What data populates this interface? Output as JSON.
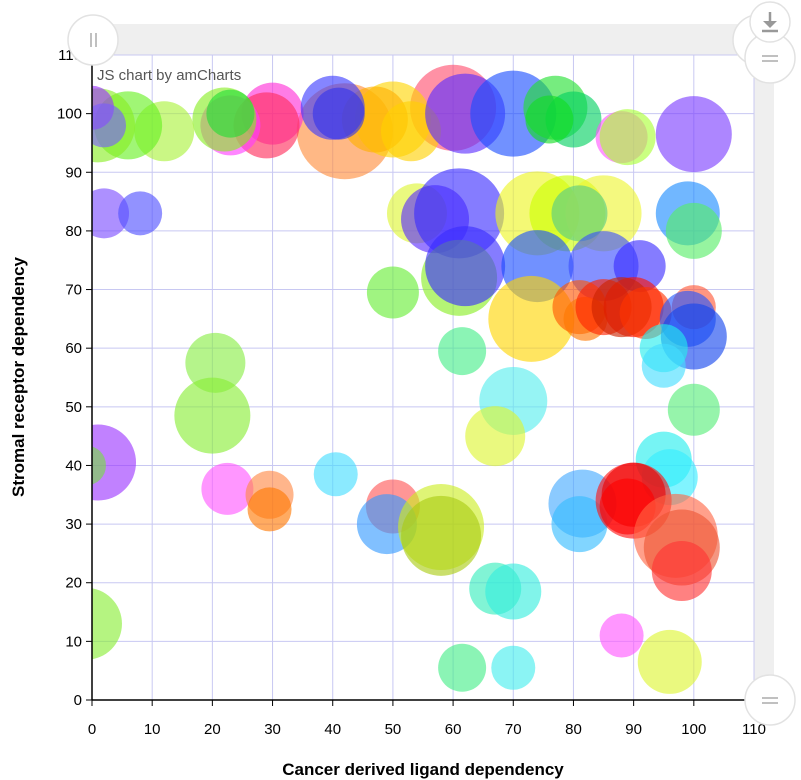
{
  "credit": "JS chart by amCharts",
  "chart_data": {
    "type": "scatter",
    "subtype": "bubble",
    "title": "",
    "xlabel": "Cancer derived ligand dependency",
    "ylabel": "Stromal receptor dependency",
    "xlim": [
      0,
      110
    ],
    "ylim": [
      0,
      110
    ],
    "x_ticks": [
      "0",
      "10",
      "20",
      "30",
      "40",
      "50",
      "60",
      "70",
      "80",
      "90",
      "100",
      "110"
    ],
    "y_ticks": [
      "0",
      "10",
      "20",
      "30",
      "40",
      "50",
      "60",
      "70",
      "80",
      "90",
      "100",
      "110"
    ],
    "grid": true,
    "legend": "none",
    "points": [
      {
        "x": 42,
        "y": 97,
        "r": 48,
        "color": "#ff8c3a"
      },
      {
        "x": 60,
        "y": 101,
        "r": 43,
        "color": "#ff4d6d"
      },
      {
        "x": 50,
        "y": 99,
        "r": 38,
        "color": "#ffd500"
      },
      {
        "x": 47,
        "y": 99,
        "r": 33,
        "color": "#ffb000"
      },
      {
        "x": 53,
        "y": 97,
        "r": 30,
        "color": "#ffd000"
      },
      {
        "x": 62,
        "y": 100,
        "r": 40,
        "color": "#5a2cff"
      },
      {
        "x": 70,
        "y": 100,
        "r": 43,
        "color": "#1a4dff"
      },
      {
        "x": 77,
        "y": 101,
        "r": 32,
        "color": "#22e030"
      },
      {
        "x": 80,
        "y": 99,
        "r": 28,
        "color": "#00d060"
      },
      {
        "x": 76,
        "y": 99,
        "r": 24,
        "color": "#11dd22"
      },
      {
        "x": 88,
        "y": 96,
        "r": 26,
        "color": "#ff55ff"
      },
      {
        "x": 89,
        "y": 96,
        "r": 28,
        "color": "#aaff33"
      },
      {
        "x": 100,
        "y": 96.5,
        "r": 38,
        "color": "#7a3cff"
      },
      {
        "x": 30,
        "y": 100,
        "r": 31,
        "color": "#ff2bd6"
      },
      {
        "x": 29,
        "y": 98,
        "r": 33,
        "color": "#ff2b5a"
      },
      {
        "x": 23,
        "y": 98,
        "r": 30,
        "color": "#ff3bff"
      },
      {
        "x": 22,
        "y": 99,
        "r": 32,
        "color": "#88ee22"
      },
      {
        "x": 23,
        "y": 100,
        "r": 24,
        "color": "#22dd33"
      },
      {
        "x": 12,
        "y": 97,
        "r": 30,
        "color": "#aaf23a"
      },
      {
        "x": 6,
        "y": 98,
        "r": 34,
        "color": "#66f020"
      },
      {
        "x": 1,
        "y": 98,
        "r": 37,
        "color": "#88ee22"
      },
      {
        "x": 0,
        "y": 101,
        "r": 22,
        "color": "#9b30ff"
      },
      {
        "x": 2,
        "y": 98,
        "r": 22,
        "color": "#7a5cff"
      },
      {
        "x": 40,
        "y": 101,
        "r": 32,
        "color": "#3a3aff"
      },
      {
        "x": 41,
        "y": 100,
        "r": 26,
        "color": "#3333ee"
      },
      {
        "x": 2,
        "y": 83,
        "r": 25,
        "color": "#7a4cff"
      },
      {
        "x": 8,
        "y": 83,
        "r": 22,
        "color": "#4f4fff"
      },
      {
        "x": 54,
        "y": 83,
        "r": 30,
        "color": "#ddf530"
      },
      {
        "x": 57,
        "y": 82,
        "r": 34,
        "color": "#5a2cff"
      },
      {
        "x": 61,
        "y": 83,
        "r": 45,
        "color": "#3a2cff"
      },
      {
        "x": 61,
        "y": 72,
        "r": 38,
        "color": "#88ee22"
      },
      {
        "x": 62,
        "y": 74,
        "r": 40,
        "color": "#3a2cff"
      },
      {
        "x": 74,
        "y": 83,
        "r": 42,
        "color": "#eef520"
      },
      {
        "x": 79,
        "y": 83,
        "r": 38,
        "color": "#ccff00"
      },
      {
        "x": 85,
        "y": 83,
        "r": 38,
        "color": "#eef530"
      },
      {
        "x": 81,
        "y": 83,
        "r": 28,
        "color": "#55cc88"
      },
      {
        "x": 74,
        "y": 74,
        "r": 36,
        "color": "#1a4dff"
      },
      {
        "x": 73,
        "y": 65,
        "r": 43,
        "color": "#ffd500"
      },
      {
        "x": 85,
        "y": 74,
        "r": 35,
        "color": "#3a4dff"
      },
      {
        "x": 91,
        "y": 74,
        "r": 26,
        "color": "#3a2cff"
      },
      {
        "x": 99,
        "y": 83,
        "r": 32,
        "color": "#1a8aff"
      },
      {
        "x": 100,
        "y": 80,
        "r": 28,
        "color": "#55ee66"
      },
      {
        "x": 50,
        "y": 69.5,
        "r": 26,
        "color": "#66ee33"
      },
      {
        "x": 81,
        "y": 67,
        "r": 27,
        "color": "#ff5500"
      },
      {
        "x": 82,
        "y": 65,
        "r": 22,
        "color": "#ff7700"
      },
      {
        "x": 85,
        "y": 67,
        "r": 28,
        "color": "#ff2200"
      },
      {
        "x": 90,
        "y": 67,
        "r": 30,
        "color": "#ff1100"
      },
      {
        "x": 88,
        "y": 67,
        "r": 30,
        "color": "#cc2200"
      },
      {
        "x": 92,
        "y": 66,
        "r": 26,
        "color": "#ff3300"
      },
      {
        "x": 100,
        "y": 67,
        "r": 22,
        "color": "#ff5533"
      },
      {
        "x": 99,
        "y": 65,
        "r": 28,
        "color": "#2255ff"
      },
      {
        "x": 100,
        "y": 62,
        "r": 33,
        "color": "#1144ee"
      },
      {
        "x": 95,
        "y": 60,
        "r": 24,
        "color": "#22eeee"
      },
      {
        "x": 95,
        "y": 57,
        "r": 22,
        "color": "#44ddff"
      },
      {
        "x": 61.5,
        "y": 59.5,
        "r": 24,
        "color": "#44ee88"
      },
      {
        "x": 20.5,
        "y": 57.5,
        "r": 30,
        "color": "#88ee44"
      },
      {
        "x": 20,
        "y": 48.5,
        "r": 38,
        "color": "#88ee33"
      },
      {
        "x": 70,
        "y": 51,
        "r": 34,
        "color": "#55eeee"
      },
      {
        "x": 67,
        "y": 45,
        "r": 30,
        "color": "#ddf530"
      },
      {
        "x": 100,
        "y": 49.5,
        "r": 26,
        "color": "#55ee77"
      },
      {
        "x": 95,
        "y": 41,
        "r": 28,
        "color": "#22eeee"
      },
      {
        "x": 96,
        "y": 38,
        "r": 28,
        "color": "#33eeff"
      },
      {
        "x": 1,
        "y": 40.5,
        "r": 38,
        "color": "#9b33ff"
      },
      {
        "x": -1,
        "y": 40,
        "r": 20,
        "color": "#77dd44"
      },
      {
        "x": 40.5,
        "y": 38.5,
        "r": 22,
        "color": "#44ddff"
      },
      {
        "x": 22.5,
        "y": 36,
        "r": 26,
        "color": "#ff55ff"
      },
      {
        "x": 29.5,
        "y": 35,
        "r": 24,
        "color": "#ff8844"
      },
      {
        "x": 29.5,
        "y": 32.5,
        "r": 22,
        "color": "#ff7700"
      },
      {
        "x": 50,
        "y": 33,
        "r": 27,
        "color": "#ff5555"
      },
      {
        "x": 49,
        "y": 30,
        "r": 30,
        "color": "#3399ff"
      },
      {
        "x": 58,
        "y": 29.5,
        "r": 43,
        "color": "#ccee22"
      },
      {
        "x": 58,
        "y": 28,
        "r": 40,
        "color": "#aacc11"
      },
      {
        "x": 81.5,
        "y": 33.5,
        "r": 34,
        "color": "#44aaff"
      },
      {
        "x": 81,
        "y": 30,
        "r": 28,
        "color": "#33bbff"
      },
      {
        "x": 90,
        "y": 34,
        "r": 38,
        "color": "#ff1111"
      },
      {
        "x": 90,
        "y": 35,
        "r": 32,
        "color": "#ee0000"
      },
      {
        "x": 89,
        "y": 33,
        "r": 28,
        "color": "#ff0000"
      },
      {
        "x": 97,
        "y": 28,
        "r": 42,
        "color": "#ff6644"
      },
      {
        "x": 98,
        "y": 26,
        "r": 38,
        "color": "#ee5533"
      },
      {
        "x": 98,
        "y": 22,
        "r": 30,
        "color": "#ff3333"
      },
      {
        "x": 67,
        "y": 19,
        "r": 26,
        "color": "#33eebb"
      },
      {
        "x": 70,
        "y": 18.5,
        "r": 28,
        "color": "#33eedd"
      },
      {
        "x": -1,
        "y": 13,
        "r": 36,
        "color": "#88ee33"
      },
      {
        "x": 88,
        "y": 11,
        "r": 22,
        "color": "#ff55ff"
      },
      {
        "x": 61.5,
        "y": 5.5,
        "r": 24,
        "color": "#44ee88"
      },
      {
        "x": 70,
        "y": 5.5,
        "r": 22,
        "color": "#44eeee"
      },
      {
        "x": 96,
        "y": 6.5,
        "r": 32,
        "color": "#ddf530"
      }
    ]
  }
}
